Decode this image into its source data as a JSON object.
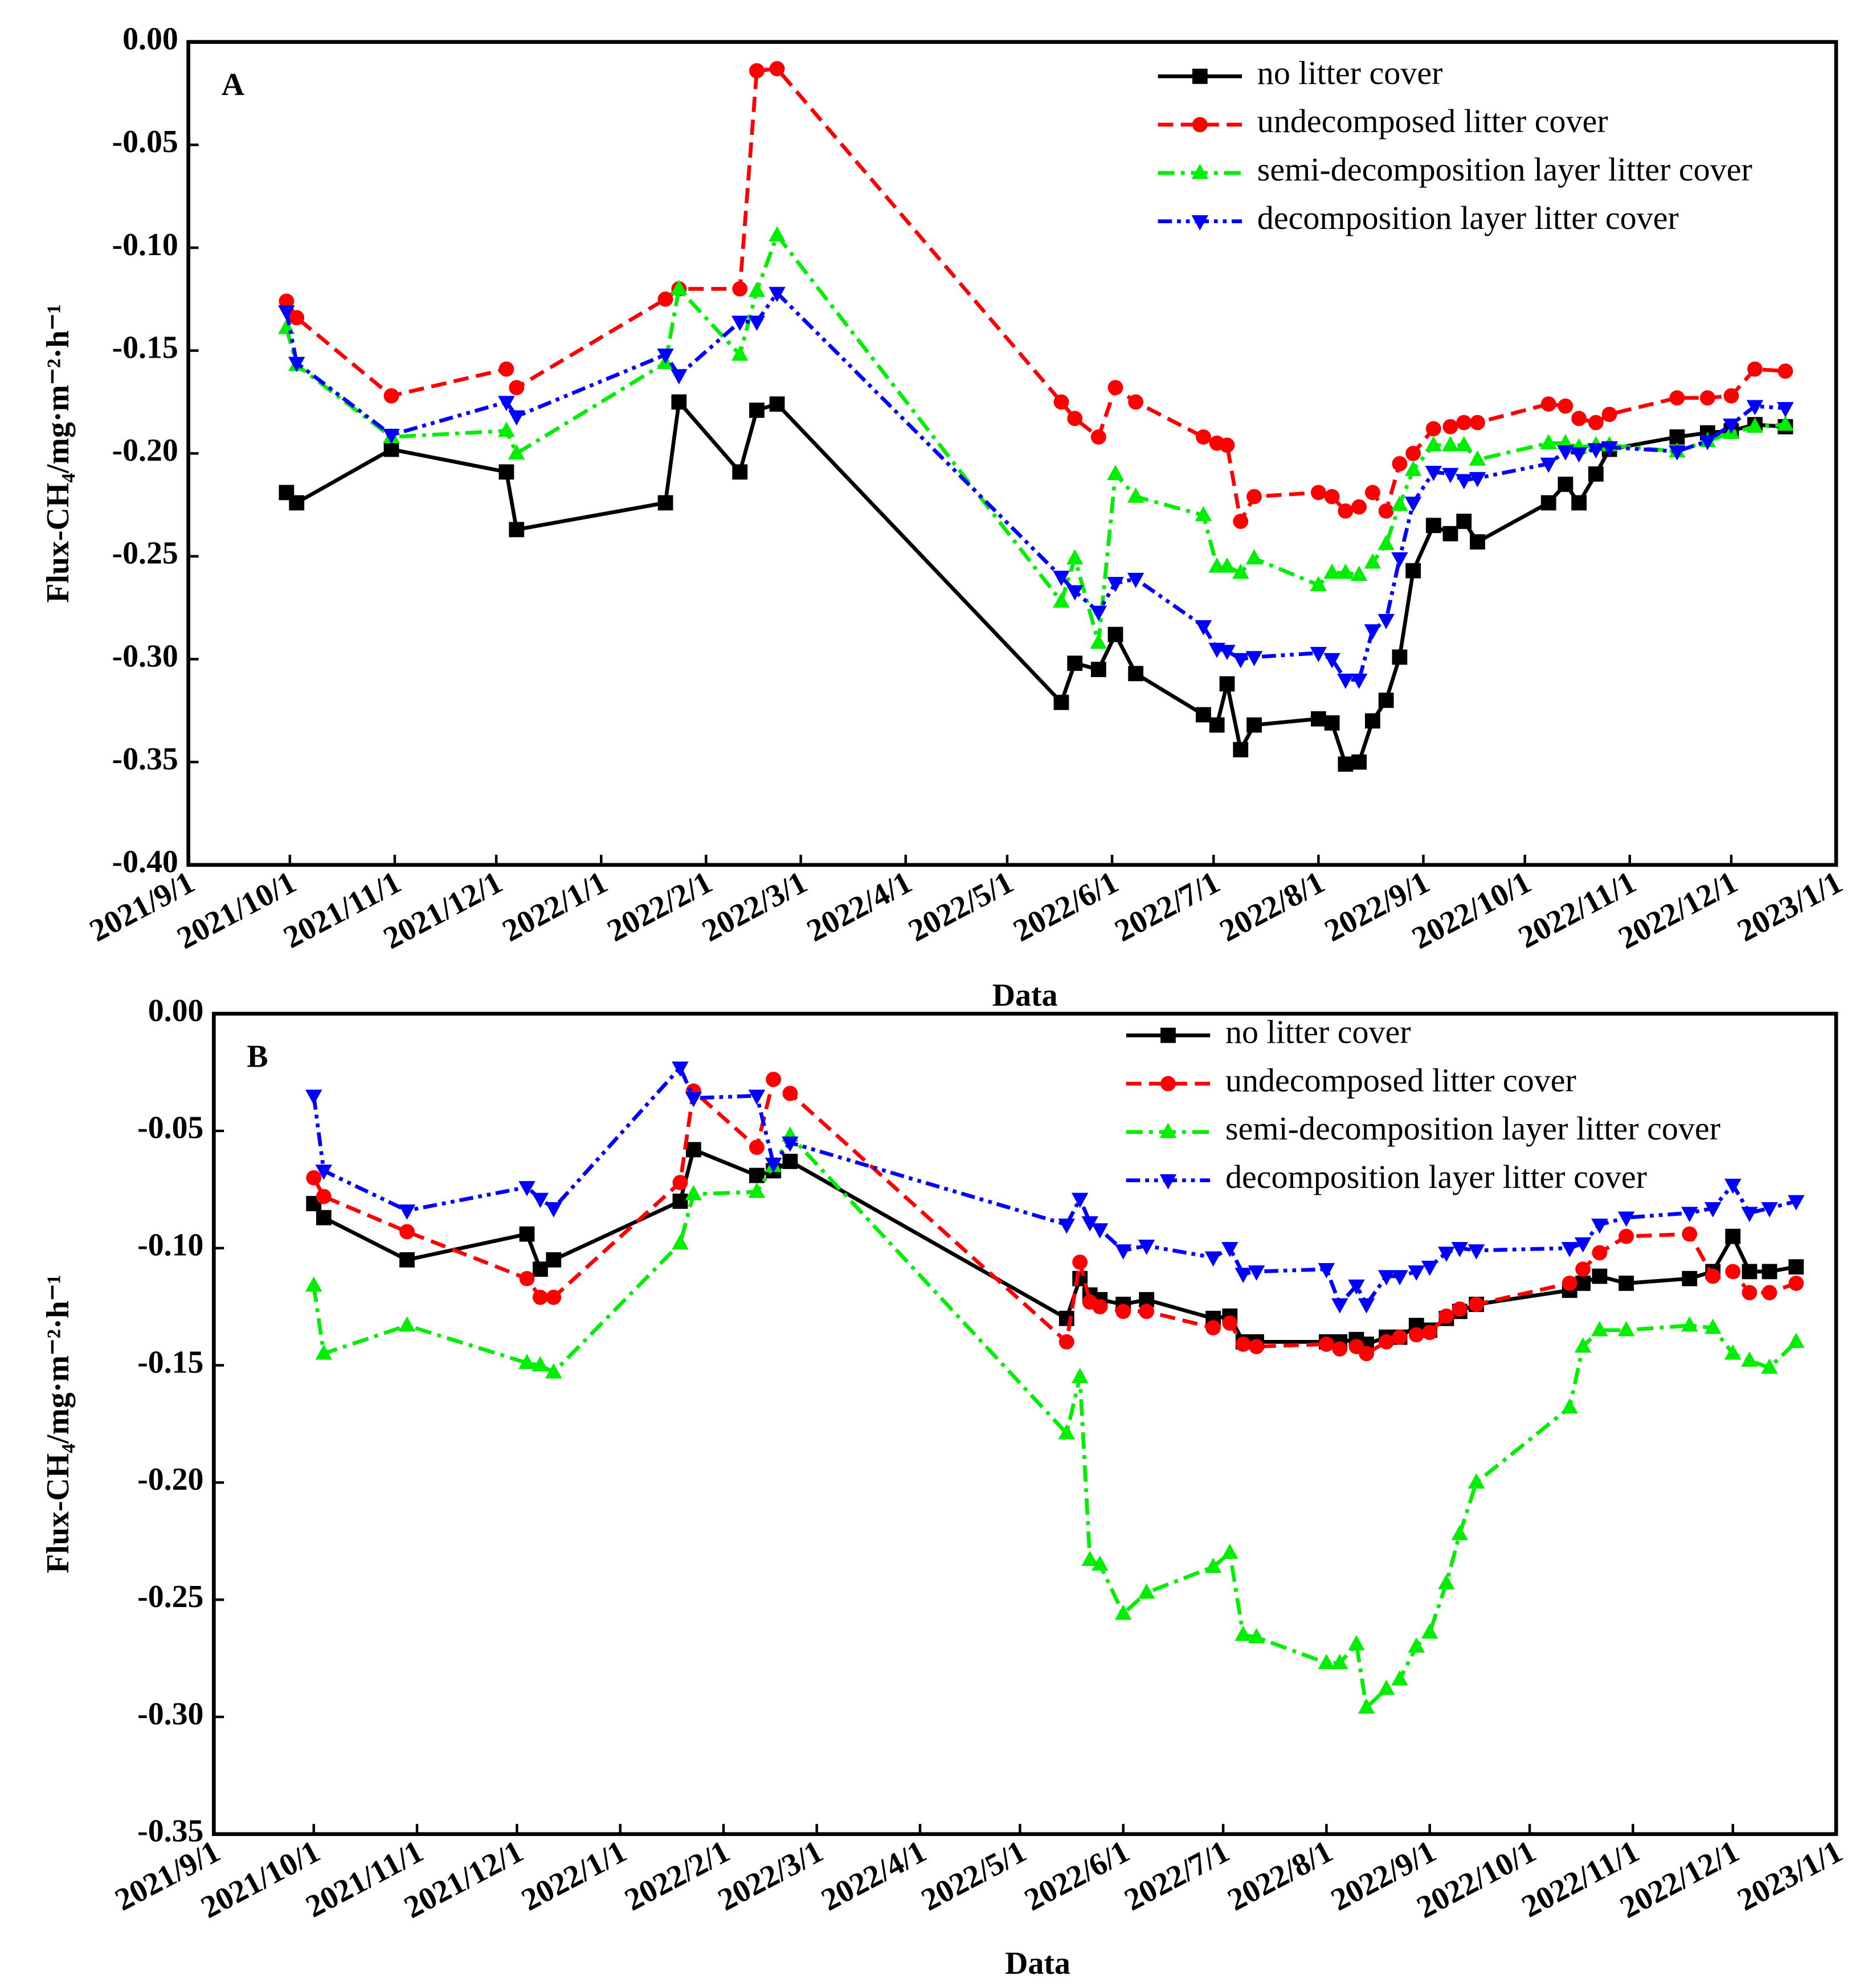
{
  "chart_data": [
    {
      "type": "line",
      "panel_label": "A",
      "xlabel": "Data",
      "ylabel": "Flux-CH₄/mg·m⁻²·h⁻¹",
      "legend": "upper right",
      "xlim": [
        "2021/9/1",
        "2023/1/1"
      ],
      "xticks": [
        "2021/9/1",
        "2021/10/1",
        "2021/11/1",
        "2021/12/1",
        "2022/1/1",
        "2022/2/1",
        "2022/3/1",
        "2022/4/1",
        "2022/5/1",
        "2022/6/1",
        "2022/7/1",
        "2022/8/1",
        "2022/9/1",
        "2022/10/1",
        "2022/11/1",
        "2022/12/1",
        "2023/1/1"
      ],
      "ylim": [
        -0.4,
        0
      ],
      "yticks": [
        {
          "value": -0.4,
          "label": "-0.40"
        },
        {
          "value": -0.35,
          "label": "-0.35"
        },
        {
          "value": -0.3,
          "label": "-0.30"
        },
        {
          "value": -0.25,
          "label": "-0.25"
        },
        {
          "value": -0.2,
          "label": "-0.20"
        },
        {
          "value": -0.15,
          "label": "-0.15"
        },
        {
          "value": -0.1,
          "label": "-0.10"
        },
        {
          "value": -0.05,
          "label": "-0.05"
        },
        {
          "value": 0,
          "label": "0.00"
        }
      ],
      "x": [
        "2021/9/30",
        "2021/10/3",
        "2021/10/31",
        "2021/12/4",
        "2021/12/7",
        "2022/1/20",
        "2022/1/24",
        "2022/2/11",
        "2022/2/16",
        "2022/2/22",
        "2022/5/17",
        "2022/5/21",
        "2022/5/28",
        "2022/6/2",
        "2022/6/8",
        "2022/6/28",
        "2022/7/2",
        "2022/7/5",
        "2022/7/9",
        "2022/7/13",
        "2022/8/1",
        "2022/8/5",
        "2022/8/9",
        "2022/8/13",
        "2022/8/17",
        "2022/8/21",
        "2022/8/25",
        "2022/8/29",
        "2022/9/4",
        "2022/9/9",
        "2022/9/13",
        "2022/9/17",
        "2022/10/8",
        "2022/10/13",
        "2022/10/17",
        "2022/10/22",
        "2022/10/26",
        "2022/11/15",
        "2022/11/24",
        "2022/12/1",
        "2022/12/8",
        "2022/12/17"
      ],
      "series": [
        {
          "name": "no litter cover",
          "color": "#000000",
          "marker": "square",
          "dash": "solid",
          "values": [
            -0.219,
            -0.224,
            -0.198,
            -0.209,
            -0.237,
            -0.224,
            -0.175,
            -0.209,
            -0.179,
            -0.176,
            -0.321,
            -0.302,
            -0.305,
            -0.288,
            -0.307,
            -0.327,
            -0.332,
            -0.312,
            -0.344,
            -0.332,
            -0.329,
            -0.331,
            -0.351,
            -0.35,
            -0.33,
            -0.32,
            -0.299,
            -0.257,
            -0.235,
            -0.239,
            -0.233,
            -0.243,
            -0.224,
            -0.215,
            -0.224,
            -0.21,
            -0.198,
            -0.192,
            -0.19,
            -0.189,
            -0.186,
            -0.187
          ]
        },
        {
          "name": "undecomposed litter cover",
          "color": "#ff0000",
          "marker": "circle",
          "dash": "dash",
          "values": [
            -0.126,
            -0.134,
            -0.172,
            -0.159,
            -0.168,
            -0.125,
            -0.12,
            -0.12,
            -0.014,
            -0.013,
            -0.175,
            -0.183,
            -0.192,
            -0.168,
            -0.175,
            -0.192,
            -0.195,
            -0.196,
            -0.233,
            -0.221,
            -0.219,
            -0.221,
            -0.228,
            -0.226,
            -0.219,
            -0.228,
            -0.205,
            -0.2,
            -0.188,
            -0.187,
            -0.185,
            -0.185,
            -0.176,
            -0.177,
            -0.183,
            -0.185,
            -0.181,
            -0.173,
            -0.173,
            -0.172,
            -0.159,
            -0.16
          ]
        },
        {
          "name": "semi-decomposition layer litter cover",
          "color": "#00ee00",
          "marker": "triangle-up",
          "dash": "dashdot",
          "values": [
            -0.139,
            -0.157,
            -0.192,
            -0.189,
            -0.2,
            -0.156,
            -0.12,
            -0.152,
            -0.121,
            -0.094,
            -0.272,
            -0.251,
            -0.292,
            -0.21,
            -0.221,
            -0.23,
            -0.255,
            -0.255,
            -0.258,
            -0.251,
            -0.264,
            -0.258,
            -0.258,
            -0.259,
            -0.253,
            -0.244,
            -0.225,
            -0.208,
            -0.196,
            -0.196,
            -0.196,
            -0.203,
            -0.195,
            -0.195,
            -0.197,
            -0.196,
            -0.196,
            -0.199,
            -0.194,
            -0.19,
            -0.187,
            -0.186
          ]
        },
        {
          "name": "decomposition layer litter cover",
          "color": "#0000ff",
          "marker": "triangle-down",
          "dash": "dashdotdot",
          "values": [
            -0.131,
            -0.156,
            -0.191,
            -0.175,
            -0.182,
            -0.152,
            -0.162,
            -0.136,
            -0.136,
            -0.122,
            -0.26,
            -0.267,
            -0.277,
            -0.263,
            -0.261,
            -0.284,
            -0.295,
            -0.296,
            -0.3,
            -0.299,
            -0.297,
            -0.3,
            -0.31,
            -0.31,
            -0.286,
            -0.281,
            -0.251,
            -0.224,
            -0.209,
            -0.21,
            -0.213,
            -0.212,
            -0.205,
            -0.199,
            -0.2,
            -0.198,
            -0.197,
            -0.199,
            -0.194,
            -0.186,
            -0.177,
            -0.178
          ]
        }
      ]
    },
    {
      "type": "line",
      "panel_label": "B",
      "xlabel": "Data",
      "ylabel": "Flux-CH₄/mg·m⁻²·h⁻¹",
      "legend": "upper right",
      "xlim": [
        "2021/9/1",
        "2023/1/1"
      ],
      "xticks": [
        "2021/9/1",
        "2021/10/1",
        "2021/11/1",
        "2021/12/1",
        "2022/1/1",
        "2022/2/1",
        "2022/3/1",
        "2022/4/1",
        "2022/5/1",
        "2022/6/1",
        "2022/7/1",
        "2022/8/1",
        "2022/9/1",
        "2022/10/1",
        "2022/11/1",
        "2022/12/1",
        "2023/1/1"
      ],
      "ylim": [
        -0.35,
        0
      ],
      "yticks": [
        {
          "value": -0.35,
          "label": "-0.35"
        },
        {
          "value": -0.3,
          "label": "-0.30"
        },
        {
          "value": -0.25,
          "label": "-0.25"
        },
        {
          "value": -0.2,
          "label": "-0.20"
        },
        {
          "value": -0.15,
          "label": "-0.15"
        },
        {
          "value": -0.1,
          "label": "-0.10"
        },
        {
          "value": -0.05,
          "label": "-0.05"
        },
        {
          "value": 0,
          "label": "0.00"
        }
      ],
      "x": [
        "2021/10/1",
        "2021/10/4",
        "2021/10/29",
        "2021/12/4",
        "2021/12/8",
        "2021/12/12",
        "2022/1/19",
        "2022/1/23",
        "2022/2/11",
        "2022/2/16",
        "2022/2/21",
        "2022/5/15",
        "2022/5/19",
        "2022/5/22",
        "2022/5/25",
        "2022/6/1",
        "2022/6/8",
        "2022/6/28",
        "2022/7/3",
        "2022/7/7",
        "2022/7/11",
        "2022/8/1",
        "2022/8/5",
        "2022/8/10",
        "2022/8/13",
        "2022/8/19",
        "2022/8/23",
        "2022/8/28",
        "2022/9/1",
        "2022/9/6",
        "2022/9/10",
        "2022/9/15",
        "2022/10/13",
        "2022/10/17",
        "2022/10/22",
        "2022/10/30",
        "2022/11/18",
        "2022/11/25",
        "2022/12/1",
        "2022/12/6",
        "2022/12/12",
        "2022/12/20"
      ],
      "series": [
        {
          "name": "no litter cover",
          "color": "#000000",
          "marker": "square",
          "dash": "solid",
          "values": [
            -0.081,
            -0.087,
            -0.105,
            -0.094,
            -0.109,
            -0.105,
            -0.08,
            -0.058,
            -0.069,
            -0.067,
            -0.063,
            -0.13,
            -0.113,
            -0.12,
            -0.122,
            -0.124,
            -0.122,
            -0.13,
            -0.129,
            -0.14,
            -0.14,
            -0.14,
            -0.14,
            -0.139,
            -0.141,
            -0.138,
            -0.138,
            -0.133,
            -0.135,
            -0.13,
            -0.127,
            -0.124,
            -0.118,
            -0.115,
            -0.112,
            -0.115,
            -0.113,
            -0.11,
            -0.095,
            -0.11,
            -0.11,
            -0.108
          ]
        },
        {
          "name": "undecomposed litter cover",
          "color": "#ff0000",
          "marker": "circle",
          "dash": "dash",
          "values": [
            -0.07,
            -0.078,
            -0.093,
            -0.113,
            -0.121,
            -0.121,
            -0.072,
            -0.033,
            -0.057,
            -0.028,
            -0.034,
            -0.14,
            -0.106,
            -0.123,
            -0.125,
            -0.127,
            -0.127,
            -0.134,
            -0.132,
            -0.141,
            -0.142,
            -0.141,
            -0.143,
            -0.142,
            -0.145,
            -0.14,
            -0.138,
            -0.137,
            -0.136,
            -0.129,
            -0.126,
            -0.124,
            -0.115,
            -0.109,
            -0.102,
            -0.095,
            -0.094,
            -0.112,
            -0.11,
            -0.119,
            -0.119,
            -0.115
          ]
        },
        {
          "name": "semi-decomposition layer litter cover",
          "color": "#00ee00",
          "marker": "triangle-up",
          "dash": "dashdot",
          "values": [
            -0.116,
            -0.145,
            -0.133,
            -0.149,
            -0.15,
            -0.153,
            -0.098,
            -0.077,
            -0.076,
            -0.065,
            -0.052,
            -0.179,
            -0.155,
            -0.233,
            -0.235,
            -0.256,
            -0.247,
            -0.236,
            -0.23,
            -0.265,
            -0.266,
            -0.277,
            -0.277,
            -0.269,
            -0.296,
            -0.288,
            -0.284,
            -0.27,
            -0.264,
            -0.243,
            -0.222,
            -0.2,
            -0.168,
            -0.142,
            -0.135,
            -0.135,
            -0.133,
            -0.134,
            -0.145,
            -0.148,
            -0.151,
            -0.14
          ]
        },
        {
          "name": "decomposition layer litter cover",
          "color": "#0000ff",
          "marker": "triangle-down",
          "dash": "dashdotdot",
          "values": [
            -0.035,
            -0.067,
            -0.084,
            -0.074,
            -0.079,
            -0.083,
            -0.023,
            -0.036,
            -0.035,
            -0.064,
            -0.055,
            -0.09,
            -0.079,
            -0.089,
            -0.092,
            -0.101,
            -0.099,
            -0.104,
            -0.1,
            -0.111,
            -0.11,
            -0.109,
            -0.124,
            -0.116,
            -0.124,
            -0.112,
            -0.112,
            -0.11,
            -0.108,
            -0.102,
            -0.1,
            -0.101,
            -0.1,
            -0.098,
            -0.09,
            -0.087,
            -0.085,
            -0.083,
            -0.073,
            -0.085,
            -0.083,
            -0.08
          ]
        }
      ]
    }
  ]
}
